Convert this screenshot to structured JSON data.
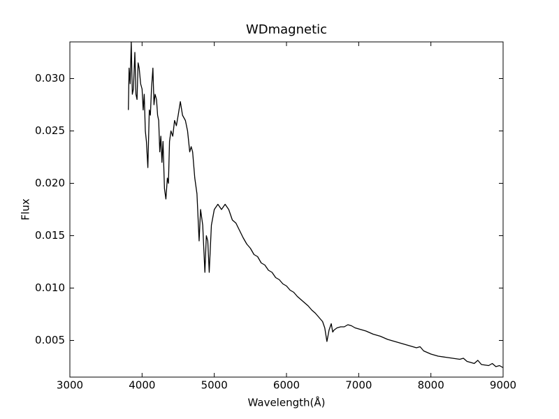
{
  "chart_data": {
    "type": "line",
    "title": "WDmagnetic",
    "xlabel": "Wavelength(Å)",
    "ylabel": "Flux",
    "x": [
      3810,
      3820,
      3835,
      3850,
      3865,
      3880,
      3900,
      3915,
      3930,
      3945,
      3960,
      3980,
      4000,
      4015,
      4030,
      4045,
      4060,
      4080,
      4100,
      4115,
      4130,
      4150,
      4165,
      4180,
      4200,
      4215,
      4230,
      4245,
      4260,
      4275,
      4290,
      4310,
      4330,
      4350,
      4365,
      4380,
      4400,
      4425,
      4450,
      4475,
      4500,
      4530,
      4560,
      4600,
      4630,
      4660,
      4680,
      4700,
      4730,
      4760,
      4790,
      4810,
      4840,
      4870,
      4890,
      4910,
      4930,
      4960,
      5000,
      5050,
      5100,
      5150,
      5200,
      5250,
      5300,
      5350,
      5400,
      5450,
      5500,
      5550,
      5600,
      5650,
      5700,
      5750,
      5800,
      5850,
      5900,
      5950,
      6000,
      6050,
      6100,
      6150,
      6200,
      6250,
      6300,
      6350,
      6400,
      6450,
      6500,
      6530,
      6560,
      6590,
      6620,
      6640,
      6660,
      6700,
      6750,
      6800,
      6850,
      6900,
      6950,
      7000,
      7100,
      7200,
      7300,
      7400,
      7500,
      7600,
      7700,
      7800,
      7850,
      7900,
      8000,
      8100,
      8200,
      8300,
      8400,
      8450,
      8500,
      8600,
      8650,
      8700,
      8800,
      8850,
      8900,
      8950,
      9000
    ],
    "series": [
      {
        "name": "Flux",
        "color": "#000000",
        "values": [
          0.027,
          0.031,
          0.0295,
          0.0335,
          0.0285,
          0.029,
          0.0325,
          0.0285,
          0.028,
          0.0315,
          0.031,
          0.0295,
          0.029,
          0.027,
          0.0285,
          0.025,
          0.024,
          0.0215,
          0.027,
          0.0265,
          0.029,
          0.031,
          0.0275,
          0.0285,
          0.028,
          0.0265,
          0.026,
          0.023,
          0.0245,
          0.022,
          0.024,
          0.0195,
          0.0185,
          0.0205,
          0.02,
          0.024,
          0.025,
          0.0245,
          0.026,
          0.0255,
          0.0265,
          0.0278,
          0.0265,
          0.026,
          0.025,
          0.023,
          0.0235,
          0.023,
          0.0205,
          0.019,
          0.0145,
          0.0175,
          0.016,
          0.0115,
          0.015,
          0.0145,
          0.0115,
          0.016,
          0.0175,
          0.018,
          0.0175,
          0.018,
          0.0175,
          0.0165,
          0.0162,
          0.0155,
          0.0148,
          0.0142,
          0.0138,
          0.0132,
          0.013,
          0.0124,
          0.0122,
          0.0117,
          0.0115,
          0.011,
          0.0108,
          0.0104,
          0.0102,
          0.0098,
          0.0096,
          0.0092,
          0.0089,
          0.0086,
          0.0083,
          0.0079,
          0.0076,
          0.0072,
          0.0068,
          0.0062,
          0.0049,
          0.006,
          0.0066,
          0.0058,
          0.006,
          0.0062,
          0.0063,
          0.0063,
          0.0065,
          0.0064,
          0.0062,
          0.0061,
          0.0059,
          0.0056,
          0.0054,
          0.0051,
          0.0049,
          0.0047,
          0.0045,
          0.0043,
          0.0044,
          0.004,
          0.0037,
          0.0035,
          0.0034,
          0.0033,
          0.0032,
          0.0033,
          0.003,
          0.0028,
          0.0031,
          0.0027,
          0.0026,
          0.0028,
          0.0025,
          0.0026,
          0.0024
        ]
      }
    ],
    "xlim": [
      3000,
      9000
    ],
    "ylim": [
      0.0015,
      0.0335
    ],
    "xticks": [
      3000,
      4000,
      5000,
      6000,
      7000,
      8000,
      9000
    ],
    "yticks": [
      0.005,
      {
        "value": 0.01,
        "label": "0.010"
      },
      0.015,
      {
        "value": 0.02,
        "label": "0.020"
      },
      0.025,
      {
        "value": 0.03,
        "label": "0.030"
      }
    ]
  }
}
